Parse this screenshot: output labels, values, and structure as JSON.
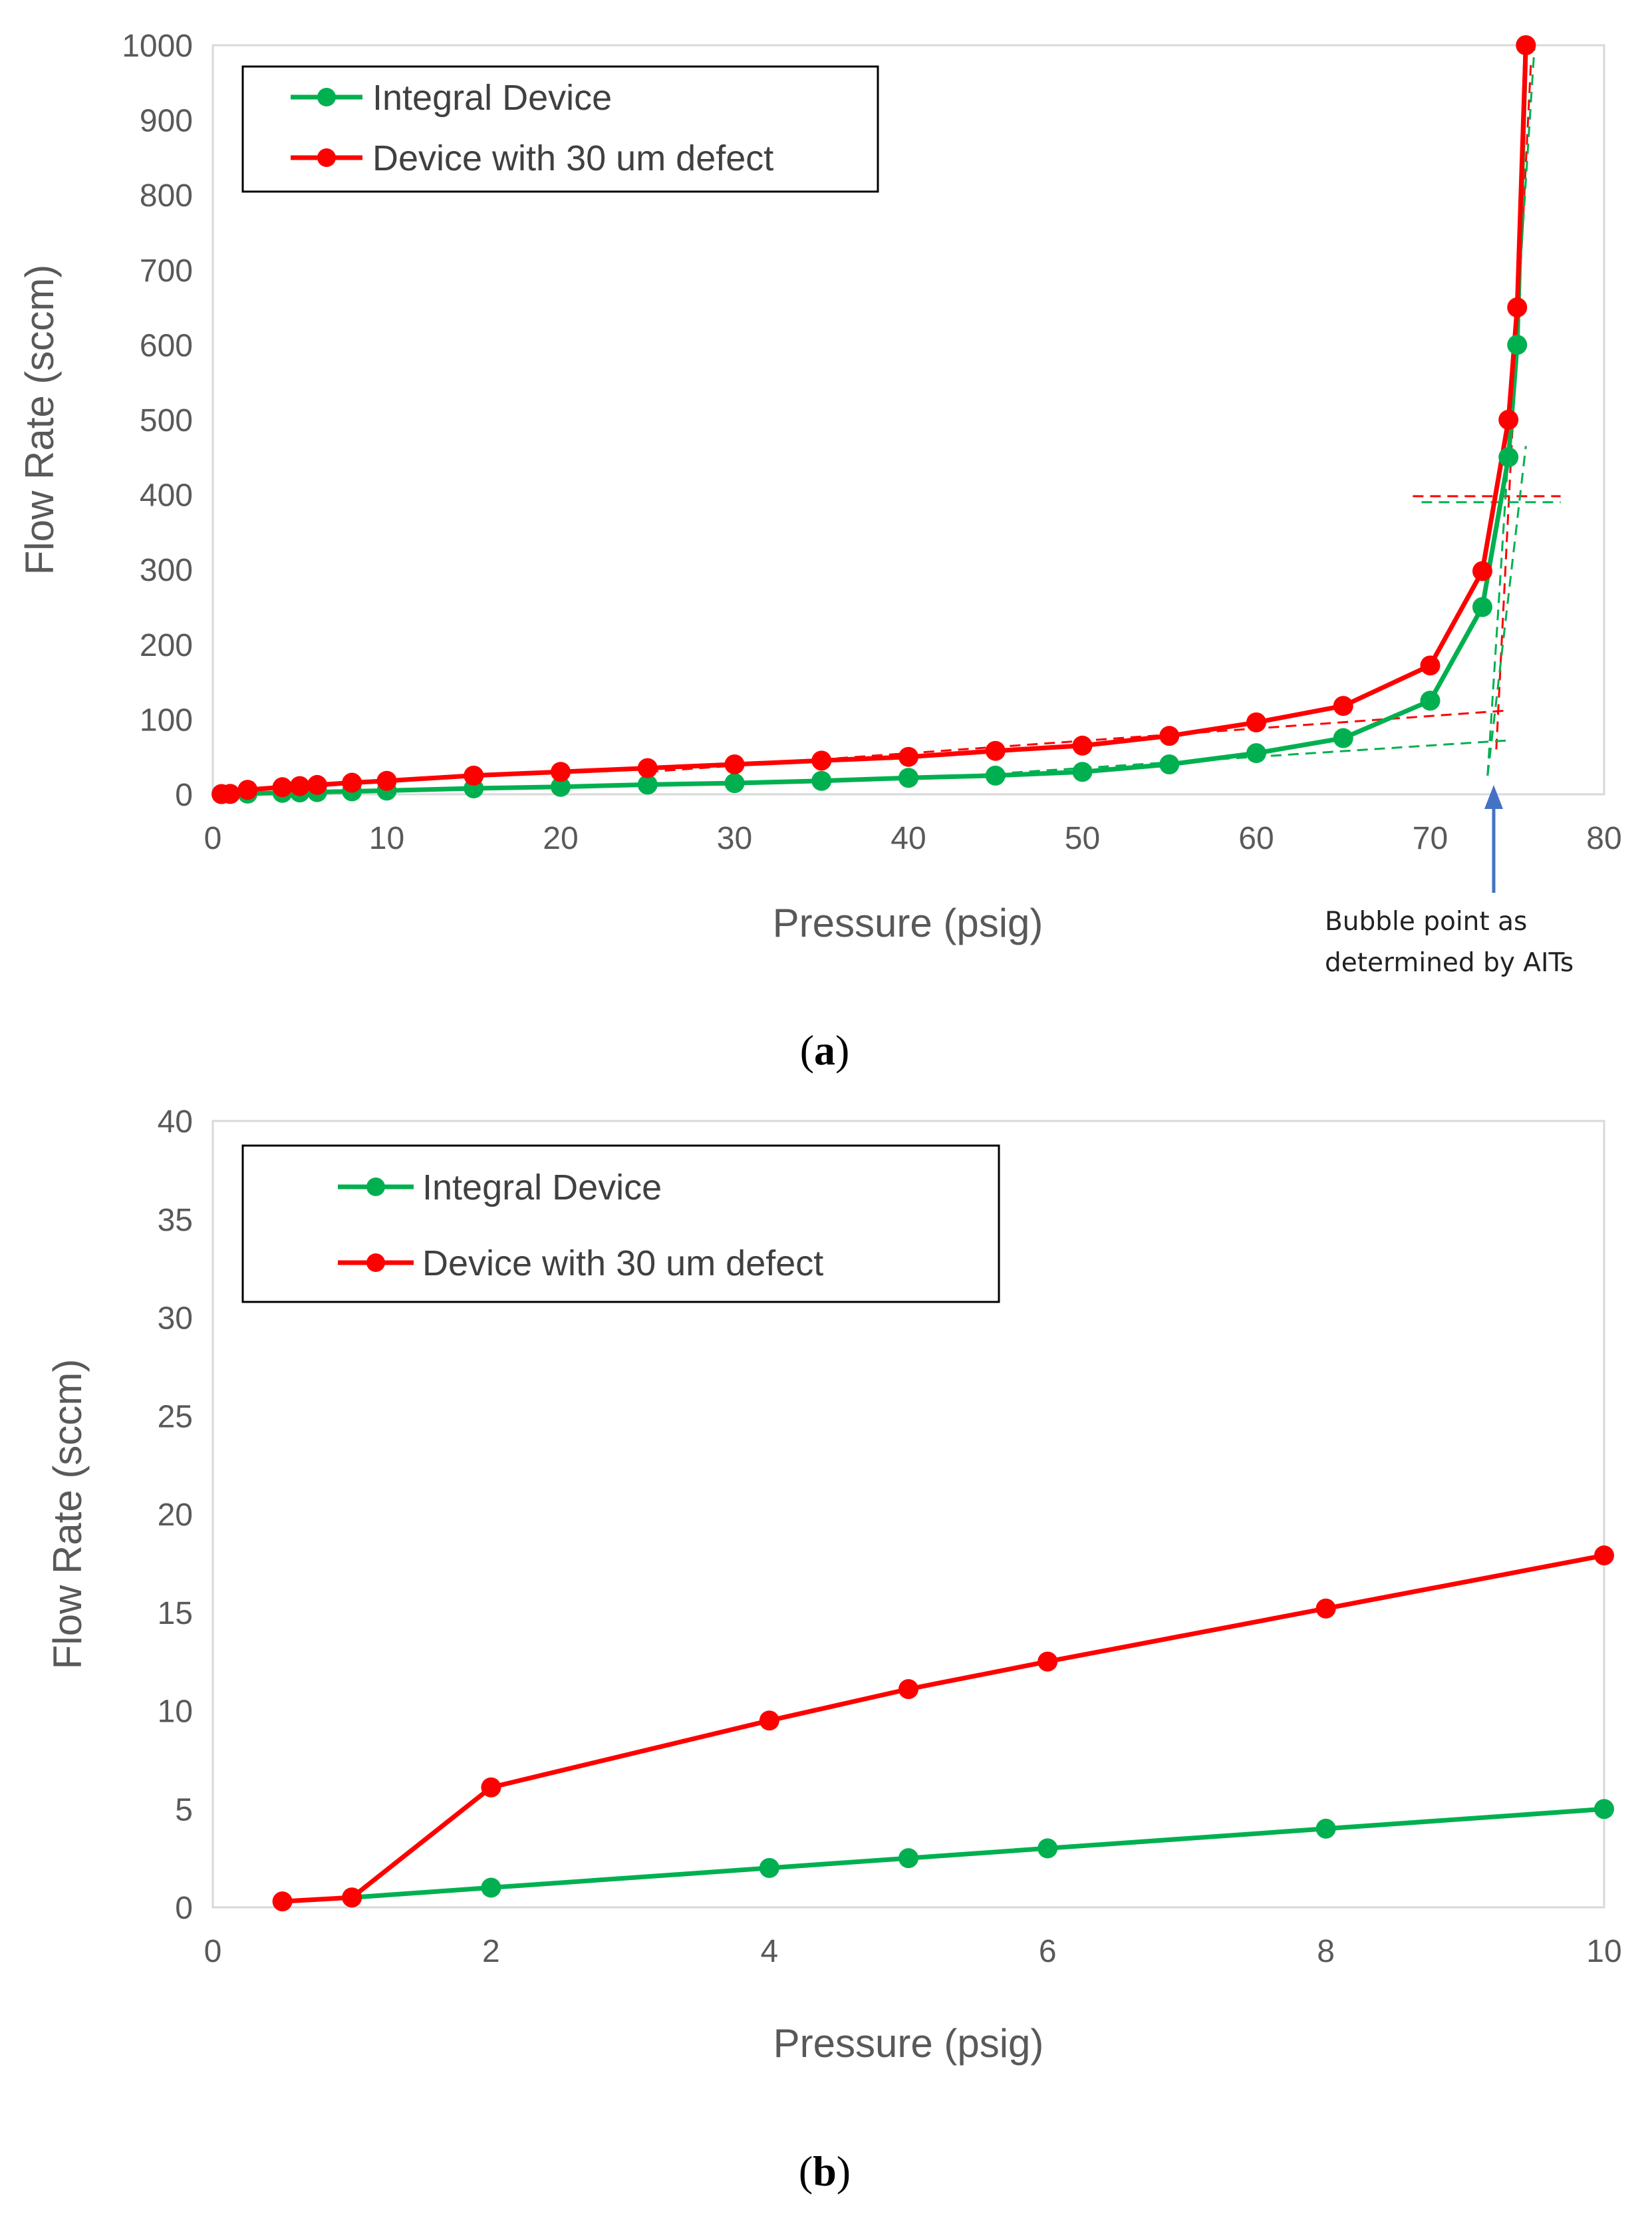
{
  "chart_data": [
    {
      "id": "a",
      "type": "line",
      "xlabel": "Pressure (psig)",
      "ylabel": "Flow Rate (sccm)",
      "xlim": [
        0,
        80
      ],
      "ylim": [
        0,
        1000
      ],
      "xticks": [
        0,
        10,
        20,
        30,
        40,
        50,
        60,
        70,
        80
      ],
      "yticks": [
        0,
        100,
        200,
        300,
        400,
        500,
        600,
        700,
        800,
        900,
        1000
      ],
      "grid": false,
      "legend": "top-left",
      "series": [
        {
          "name": "Integral Device",
          "color": "#00b050",
          "x": [
            0.5,
            1,
            2,
            4,
            5,
            6,
            8,
            10,
            15,
            20,
            25,
            30,
            35,
            40,
            45,
            50,
            55,
            60,
            65,
            70,
            73,
            74.5,
            75,
            75.5
          ],
          "y": [
            0.3,
            0.5,
            1,
            2,
            2.5,
            3,
            4,
            5,
            8,
            10,
            13,
            15,
            18,
            22,
            25,
            30,
            40,
            55,
            75,
            125,
            250,
            450,
            600,
            1000
          ]
        },
        {
          "name": "Device with 30 um defect",
          "color": "#ff0000",
          "x": [
            0.5,
            1,
            2,
            4,
            5,
            6,
            8,
            10,
            15,
            20,
            25,
            30,
            35,
            40,
            45,
            50,
            55,
            60,
            65,
            70,
            73,
            74.5,
            75,
            75.5
          ],
          "y": [
            0.3,
            0.5,
            6,
            9.5,
            11,
            12.5,
            15.5,
            18,
            25,
            30,
            35,
            40,
            45,
            50,
            58,
            65,
            78,
            96,
            118,
            172,
            298,
            500,
            650,
            1000
          ]
        }
      ],
      "annotation": {
        "line1": "Bubble point as",
        "line2": "determined by AITs",
        "arrow_x": 73.5,
        "arrow_color": "#4472c4"
      },
      "guide_lines": [
        {
          "series": "Device with 30 um defect",
          "x1": 25,
          "y1": 30,
          "x2": 74.5,
          "y2": 112
        },
        {
          "series": "Device with 30 um defect",
          "x1": 69,
          "y1": 398,
          "x2": 77.5,
          "y2": 398
        },
        {
          "series": "Device with 30 um defect",
          "x1": 73.8,
          "y1": 60,
          "x2": 75.8,
          "y2": 980
        },
        {
          "series": "Integral Device",
          "x1": 40,
          "y1": 20,
          "x2": 74.5,
          "y2": 72
        },
        {
          "series": "Integral Device",
          "x1": 69.5,
          "y1": 390,
          "x2": 77.5,
          "y2": 390
        },
        {
          "series": "Integral Device",
          "x1": 73.3,
          "y1": 25,
          "x2": 75.5,
          "y2": 465
        },
        {
          "series": "Integral Device",
          "x1": 73.3,
          "y1": 25,
          "x2": 76,
          "y2": 1000
        }
      ],
      "caption": "a"
    },
    {
      "id": "b",
      "type": "line",
      "xlabel": "Pressure (psig)",
      "ylabel": "Flow Rate (sccm)",
      "xlim": [
        0,
        10
      ],
      "ylim": [
        0,
        40
      ],
      "xticks": [
        0,
        2,
        4,
        6,
        8,
        10
      ],
      "yticks": [
        0,
        5,
        10,
        15,
        20,
        25,
        30,
        35,
        40
      ],
      "grid": false,
      "legend": "top-left",
      "series": [
        {
          "name": "Integral Device",
          "color": "#00b050",
          "x": [
            1,
            2,
            4,
            5,
            6,
            8,
            10
          ],
          "y": [
            0.5,
            1,
            2,
            2.5,
            3,
            4,
            5
          ]
        },
        {
          "name": "Device with 30 um defect",
          "color": "#ff0000",
          "x": [
            0.5,
            1,
            2,
            4,
            5,
            6,
            8,
            10
          ],
          "y": [
            0.3,
            0.5,
            6.1,
            9.5,
            11.1,
            12.5,
            15.2,
            17.9
          ]
        }
      ],
      "caption": "b"
    }
  ]
}
